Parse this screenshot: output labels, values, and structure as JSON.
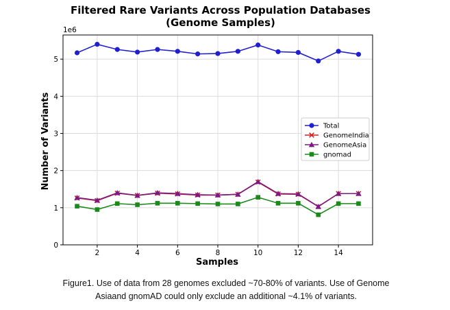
{
  "chart_data": {
    "type": "line",
    "title_lines": [
      "Filtered Rare Variants Across Population Databases",
      "(Genome Samples)"
    ],
    "xlabel": "Samples",
    "ylabel": "Number of Variants",
    "y_multiplier_label": "1e6",
    "xlim": [
      0.3,
      15.7
    ],
    "ylim": [
      0,
      5.65
    ],
    "x_ticks": [
      2,
      4,
      6,
      8,
      10,
      12,
      14
    ],
    "x_tick_labels": [
      "2",
      "4",
      "6",
      "8",
      "10",
      "12",
      "14"
    ],
    "y_ticks": [
      0,
      1,
      2,
      3,
      4,
      5
    ],
    "y_tick_labels": [
      "0",
      "1",
      "2",
      "3",
      "4",
      "5"
    ],
    "grid": true,
    "legend_position": "center-right",
    "x": [
      1,
      2,
      3,
      4,
      5,
      6,
      7,
      8,
      9,
      10,
      11,
      12,
      13,
      14,
      15
    ],
    "series": [
      {
        "name": "Total",
        "color": "#1f1fd0",
        "marker": "circle",
        "values": [
          5.17,
          5.4,
          5.26,
          5.19,
          5.26,
          5.21,
          5.14,
          5.15,
          5.21,
          5.38,
          5.2,
          5.18,
          4.95,
          5.21,
          5.13
        ]
      },
      {
        "name": "GenomeIndia",
        "color": "#d42020",
        "marker": "x",
        "values": [
          1.26,
          1.19,
          1.39,
          1.33,
          1.39,
          1.37,
          1.34,
          1.34,
          1.36,
          1.69,
          1.37,
          1.36,
          1.03,
          1.38,
          1.38
        ]
      },
      {
        "name": "GenomeAsia",
        "color": "#7a1a82",
        "marker": "triangle",
        "values": [
          1.27,
          1.2,
          1.4,
          1.33,
          1.4,
          1.38,
          1.35,
          1.34,
          1.36,
          1.7,
          1.38,
          1.37,
          1.03,
          1.38,
          1.38
        ]
      },
      {
        "name": "gnomad",
        "color": "#1b8a1b",
        "marker": "square",
        "values": [
          1.04,
          0.95,
          1.11,
          1.08,
          1.12,
          1.12,
          1.11,
          1.1,
          1.1,
          1.28,
          1.12,
          1.12,
          0.81,
          1.11,
          1.11
        ]
      }
    ]
  },
  "caption": {
    "line1": "Figure1. Use of data from 28 genomes excluded ~70-80% of variants. Use of Genome",
    "line2": "Asiaand gnomAD could only exclude an additional ~4.1% of variants."
  }
}
